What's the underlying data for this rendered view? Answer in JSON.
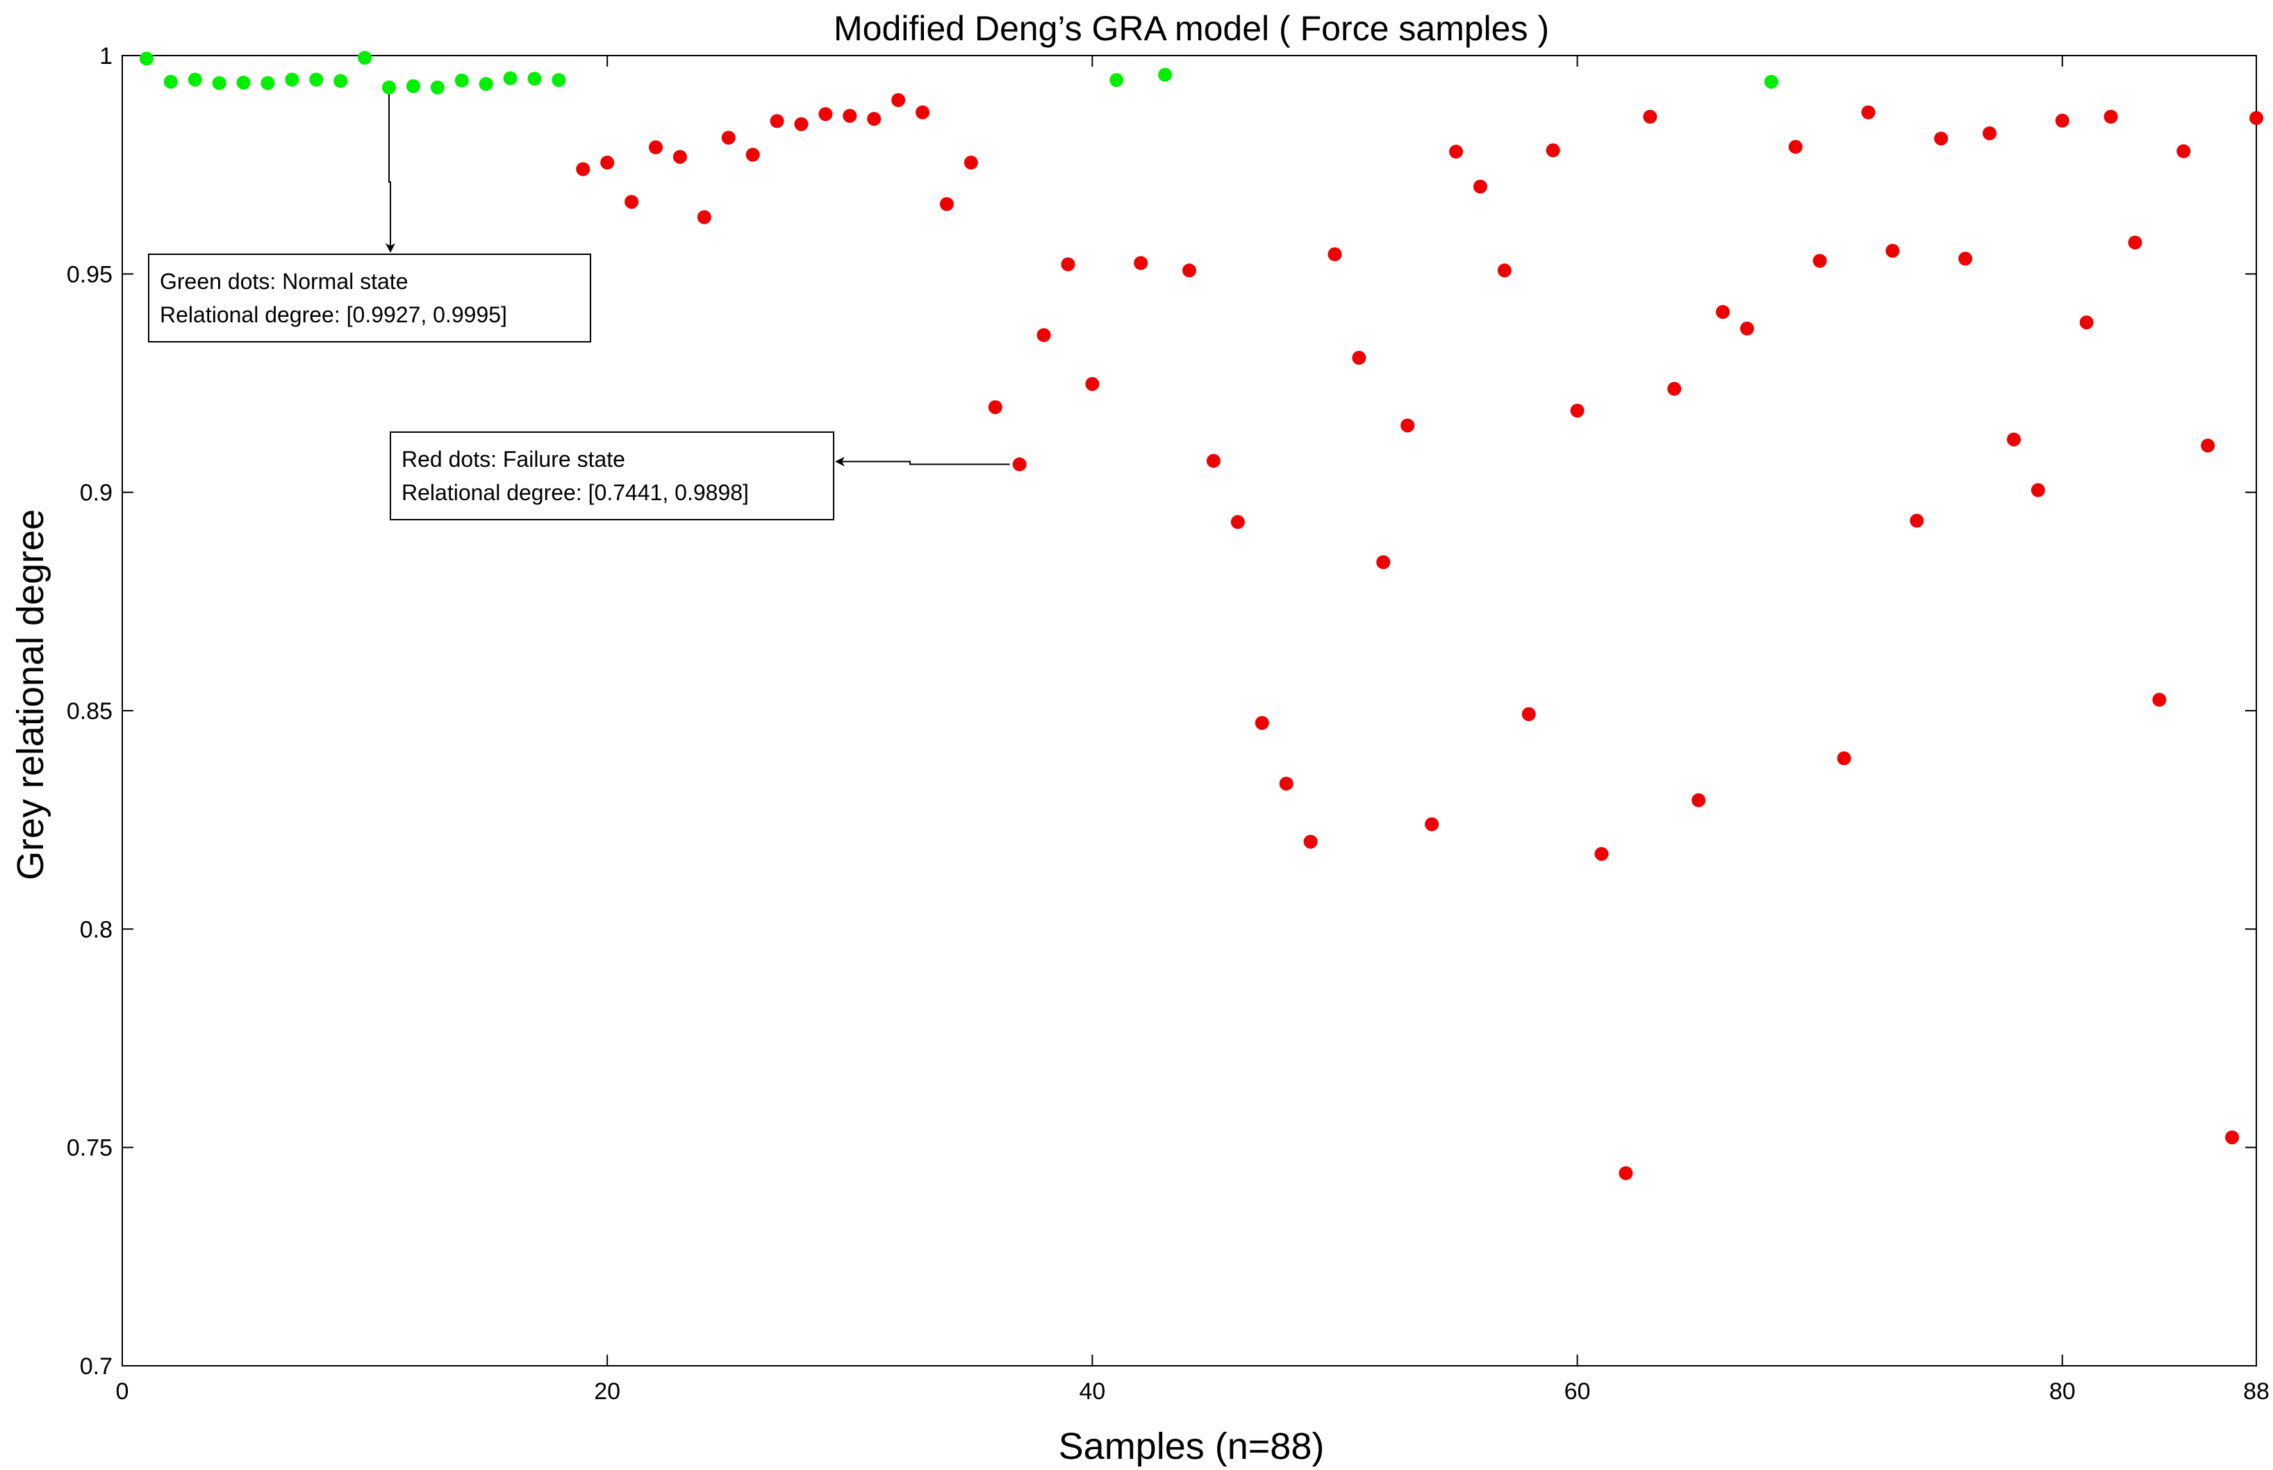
{
  "chart_data": {
    "type": "scatter",
    "title": "Modified Deng’s GRA model ( Force samples )",
    "xlabel": "Samples (n=88)",
    "ylabel": "Grey relational degree",
    "xlim": [
      0,
      88
    ],
    "ylim": [
      0.7,
      1.0
    ],
    "xticks": [
      0,
      20,
      40,
      60,
      80,
      88
    ],
    "xtick_labels": [
      "0",
      "20",
      "40",
      "60",
      "80",
      "88"
    ],
    "yticks": [
      0.7,
      0.75,
      0.8,
      0.85,
      0.9,
      0.95,
      1.0
    ],
    "ytick_labels": [
      "0.7",
      "0.75",
      "0.8",
      "0.85",
      "0.9",
      "0.95",
      "1"
    ],
    "grid": false,
    "colors": {
      "normal": "#00ee00",
      "failure": "#ee0000"
    },
    "series": [
      {
        "state": "normal",
        "points": [
          [
            1,
            0.9993
          ],
          [
            2,
            0.994
          ],
          [
            3,
            0.9945
          ],
          [
            4,
            0.9937
          ],
          [
            5,
            0.9938
          ],
          [
            6,
            0.9937
          ],
          [
            7,
            0.9945
          ],
          [
            8,
            0.9945
          ],
          [
            9,
            0.9942
          ],
          [
            10,
            0.9995
          ],
          [
            11,
            0.9927
          ],
          [
            12,
            0.993
          ],
          [
            13,
            0.9927
          ],
          [
            14,
            0.9943
          ],
          [
            15,
            0.9935
          ],
          [
            16,
            0.9948
          ],
          [
            17,
            0.9947
          ],
          [
            18,
            0.9944
          ],
          [
            41,
            0.9944
          ],
          [
            43,
            0.9956
          ],
          [
            68,
            0.994
          ]
        ]
      },
      {
        "state": "failure",
        "points": [
          [
            19,
            0.974
          ],
          [
            20,
            0.9755
          ],
          [
            21,
            0.9665
          ],
          [
            22,
            0.979
          ],
          [
            23,
            0.9768
          ],
          [
            24,
            0.963
          ],
          [
            25,
            0.9812
          ],
          [
            26,
            0.9773
          ],
          [
            27,
            0.985
          ],
          [
            28,
            0.9843
          ],
          [
            29,
            0.9866
          ],
          [
            30,
            0.9862
          ],
          [
            31,
            0.9855
          ],
          [
            32,
            0.9898
          ],
          [
            33,
            0.987
          ],
          [
            34,
            0.966
          ],
          [
            35,
            0.9755
          ],
          [
            36,
            0.9195
          ],
          [
            37,
            0.9064
          ],
          [
            38,
            0.936
          ],
          [
            39,
            0.9522
          ],
          [
            40,
            0.9248
          ],
          [
            42,
            0.9525
          ],
          [
            44,
            0.9508
          ],
          [
            45,
            0.9072
          ],
          [
            46,
            0.8932
          ],
          [
            47,
            0.8472
          ],
          [
            48,
            0.8333
          ],
          [
            49,
            0.82
          ],
          [
            50,
            0.9545
          ],
          [
            51,
            0.9308
          ],
          [
            52,
            0.884
          ],
          [
            53,
            0.9153
          ],
          [
            54,
            0.824
          ],
          [
            55,
            0.978
          ],
          [
            56,
            0.97
          ],
          [
            57,
            0.9508
          ],
          [
            58,
            0.8492
          ],
          [
            59,
            0.9783
          ],
          [
            60,
            0.9187
          ],
          [
            61,
            0.8172
          ],
          [
            62,
            0.7441
          ],
          [
            63,
            0.986
          ],
          [
            64,
            0.9237
          ],
          [
            65,
            0.8295
          ],
          [
            66,
            0.9413
          ],
          [
            67,
            0.9375
          ],
          [
            69,
            0.9791
          ],
          [
            70,
            0.953
          ],
          [
            71,
            0.8391
          ],
          [
            72,
            0.987
          ],
          [
            73,
            0.9553
          ],
          [
            74,
            0.8935
          ],
          [
            75,
            0.981
          ],
          [
            76,
            0.9535
          ],
          [
            77,
            0.9822
          ],
          [
            78,
            0.9121
          ],
          [
            79,
            0.9005
          ],
          [
            80,
            0.9851
          ],
          [
            81,
            0.9389
          ],
          [
            82,
            0.986
          ],
          [
            83,
            0.9572
          ],
          [
            84,
            0.8525
          ],
          [
            85,
            0.9781
          ],
          [
            86,
            0.9107
          ],
          [
            87,
            0.7523
          ],
          [
            88,
            0.9857
          ]
        ]
      }
    ],
    "annotations": [
      {
        "line1": "Green dots: Normal state",
        "line2": "Relational degree: [0.9927, 0.9995]",
        "arrow_from": [
          11,
          0.9927
        ]
      },
      {
        "line1": "Red dots: Failure state",
        "line2": "Relational degree: [0.7441, 0.9898]",
        "arrow_from": [
          37,
          0.9064
        ]
      }
    ]
  }
}
